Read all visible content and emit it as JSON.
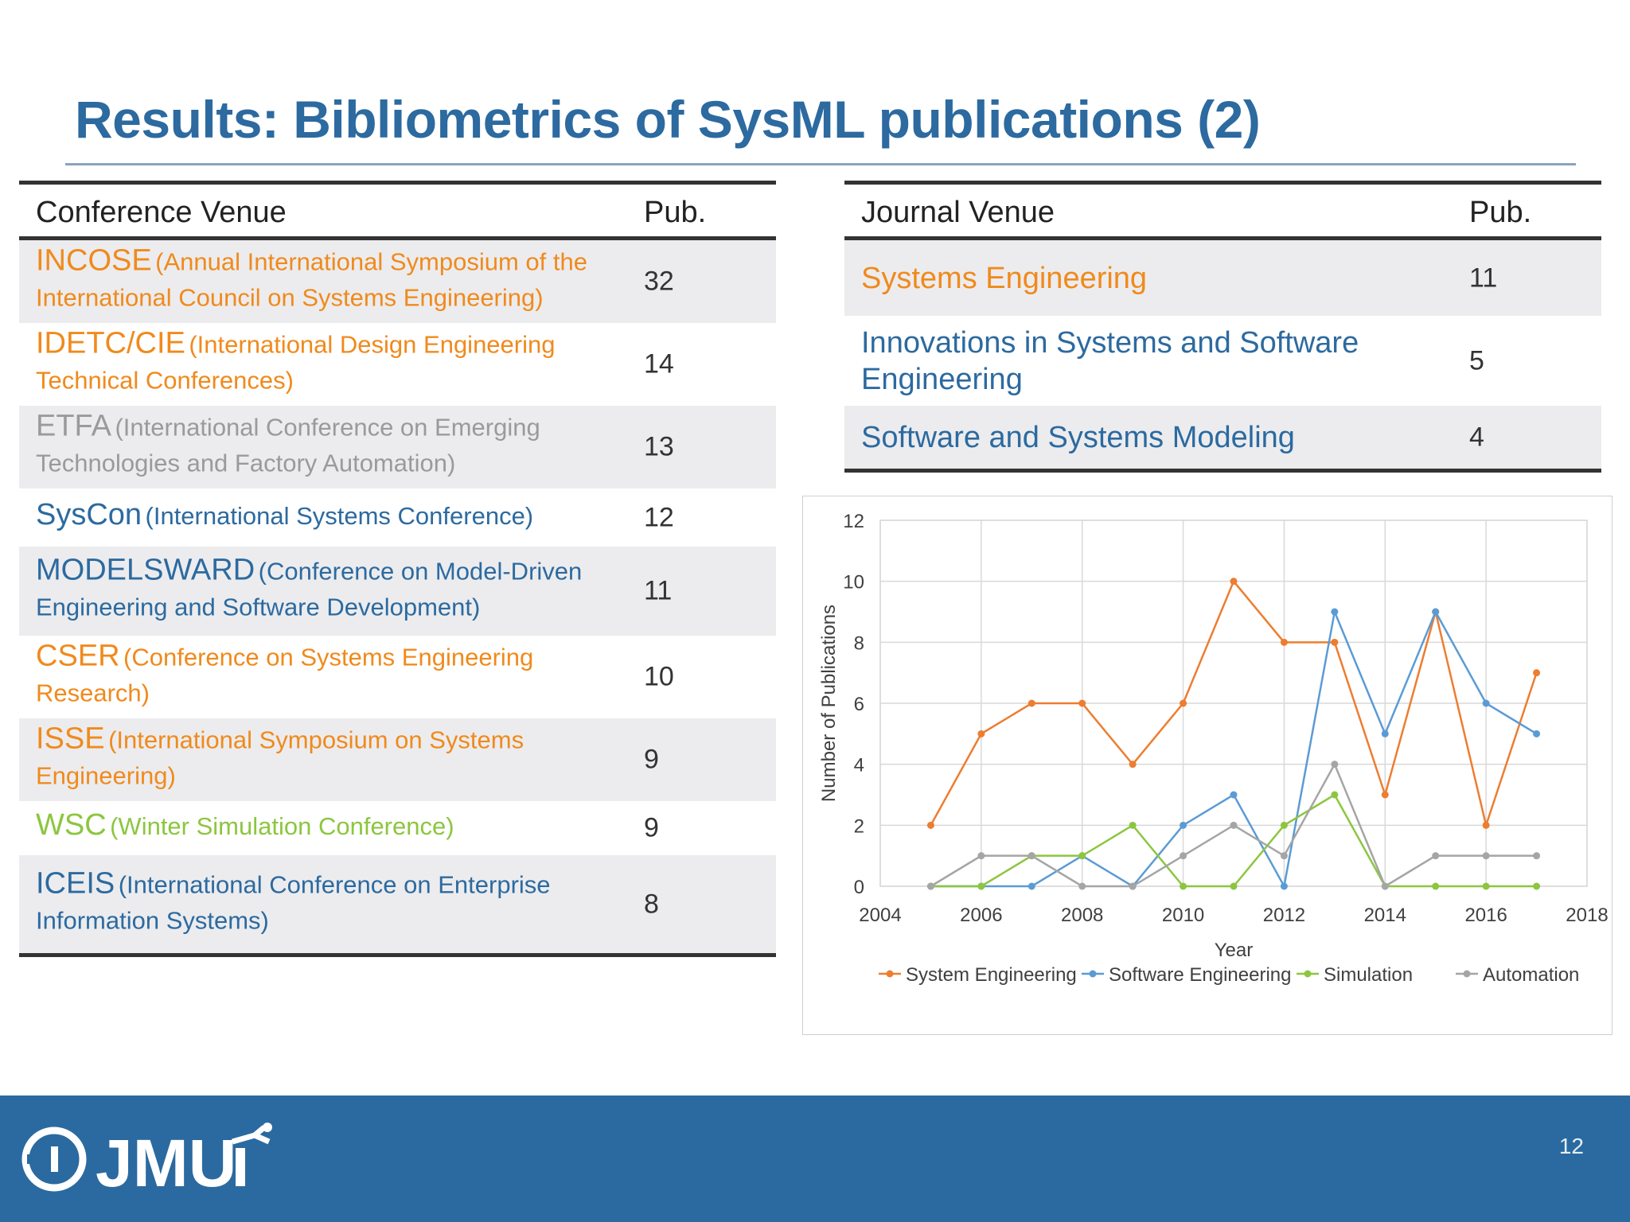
{
  "title": "Results: Bibliometrics of SysML publications (2)",
  "colors": {
    "accent": "#2c6aa0",
    "orange": "#f08a1c",
    "gray": "#9a9a9a",
    "green": "#8cc63f",
    "blue": "#2c6aa0"
  },
  "conference_table": {
    "header": {
      "venue": "Conference Venue",
      "pub": "Pub."
    },
    "rows": [
      {
        "abbr": "INCOSE",
        "full": "(Annual International Symposium of the International Council on Systems Engineering)",
        "pub": "32",
        "color": "#f08a1c"
      },
      {
        "abbr": "IDETC/CIE",
        "full": "(International Design Engineering Technical Conferences)",
        "pub": "14",
        "color": "#f08a1c"
      },
      {
        "abbr": "ETFA",
        "full": "(International Conference on Emerging Technologies and Factory Automation)",
        "pub": "13",
        "color": "#9a9a9a"
      },
      {
        "abbr": "SysCon",
        "full": "(International Systems Conference)",
        "pub": "12",
        "color": "#2c6aa0"
      },
      {
        "abbr": "MODELSWARD",
        "full": "(Conference on Model-Driven Engineering and Software Development)",
        "pub": "11",
        "color": "#2c6aa0"
      },
      {
        "abbr": "CSER",
        "full": "(Conference on Systems Engineering Research)",
        "pub": "10",
        "color": "#f08a1c"
      },
      {
        "abbr": "ISSE",
        "full": "(International Symposium on Systems Engineering)",
        "pub": "9",
        "color": "#f08a1c"
      },
      {
        "abbr": "WSC",
        "full": "(Winter Simulation Conference)",
        "pub": "9",
        "color": "#8cc63f"
      },
      {
        "abbr": "ICEIS",
        "full": "(International Conference on Enterprise Information Systems)",
        "pub": "8",
        "color": "#2c6aa0"
      }
    ]
  },
  "journal_table": {
    "header": {
      "venue": "Journal Venue",
      "pub": "Pub."
    },
    "rows": [
      {
        "name": "Systems Engineering",
        "pub": "11",
        "color": "#f08a1c"
      },
      {
        "name": "Innovations in Systems and Software Engineering",
        "pub": "5",
        "color": "#2c6aa0"
      },
      {
        "name": "Software and Systems Modeling",
        "pub": "4",
        "color": "#2c6aa0"
      }
    ]
  },
  "chart_data": {
    "type": "line",
    "xlabel": "Year",
    "ylabel": "Number of Publications",
    "xlim": [
      2004,
      2018
    ],
    "ylim": [
      0,
      12
    ],
    "xticks": [
      2004,
      2006,
      2008,
      2010,
      2012,
      2014,
      2016,
      2018
    ],
    "yticks": [
      0,
      2,
      4,
      6,
      8,
      10,
      12
    ],
    "grid": true,
    "legend_position": "bottom",
    "x": [
      2005,
      2006,
      2007,
      2008,
      2009,
      2010,
      2011,
      2012,
      2013,
      2014,
      2015,
      2016,
      2017
    ],
    "series": [
      {
        "name": "System Engineering",
        "color": "#ed7d31",
        "values": [
          2,
          5,
          6,
          6,
          4,
          6,
          10,
          8,
          8,
          3,
          9,
          2,
          7
        ]
      },
      {
        "name": "Software Engineering",
        "color": "#5b9bd5",
        "values": [
          0,
          0,
          0,
          1,
          0,
          2,
          3,
          0,
          9,
          5,
          9,
          6,
          5
        ]
      },
      {
        "name": "Simulation",
        "color": "#8cc63f",
        "values": [
          0,
          0,
          1,
          1,
          2,
          0,
          0,
          2,
          3,
          0,
          0,
          0,
          0
        ]
      },
      {
        "name": "Automation",
        "color": "#a5a5a5",
        "values": [
          0,
          1,
          1,
          0,
          0,
          1,
          2,
          1,
          4,
          0,
          1,
          1,
          1
        ]
      }
    ]
  },
  "footer": {
    "logo_text": "JMU",
    "page_number": "12"
  }
}
